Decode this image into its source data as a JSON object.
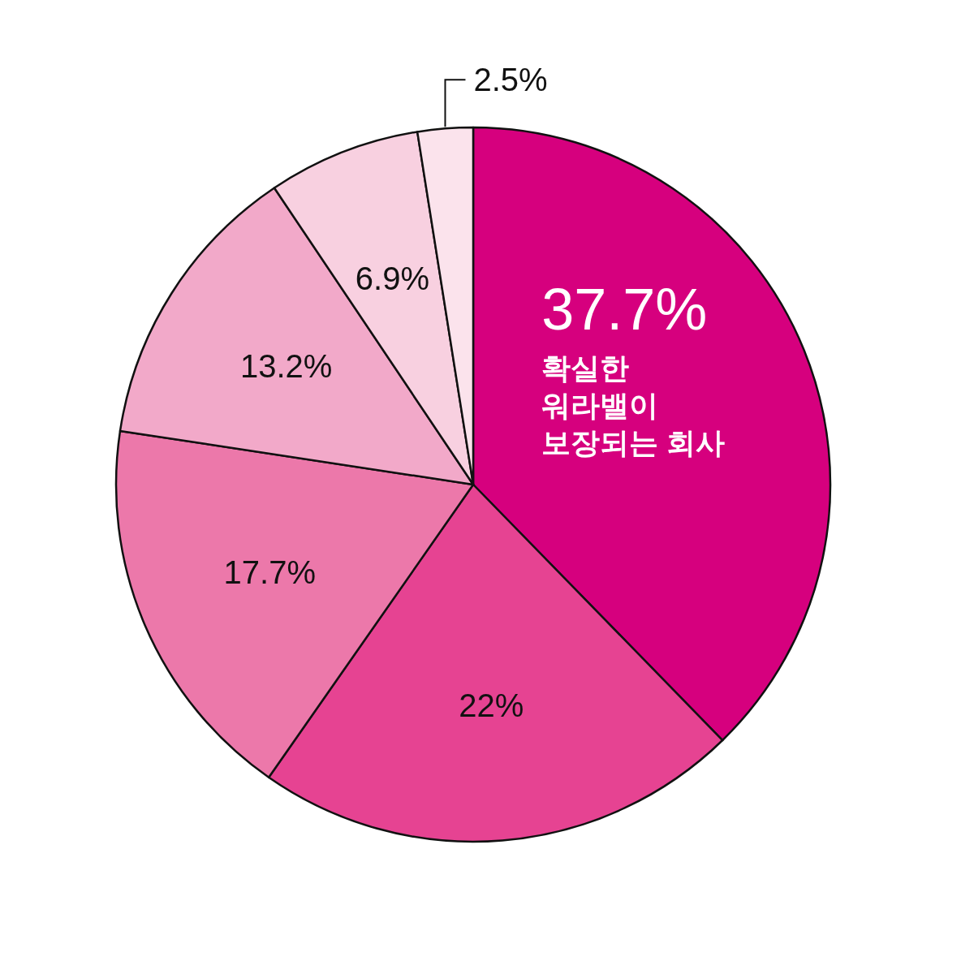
{
  "chart_data": {
    "type": "pie",
    "categories": [
      "확실한 워라밸이 보장되는 회사",
      null,
      null,
      null,
      null,
      null
    ],
    "values": [
      37.7,
      22,
      17.7,
      13.2,
      6.9,
      2.5
    ],
    "value_labels": [
      "37.7%",
      "22%",
      "17.7%",
      "13.2%",
      "6.9%",
      "2.5%"
    ],
    "colors": [
      "#d6007e",
      "#e64392",
      "#ec78aa",
      "#f2a9c9",
      "#f8d0e0",
      "#fbe3ec"
    ]
  }
}
